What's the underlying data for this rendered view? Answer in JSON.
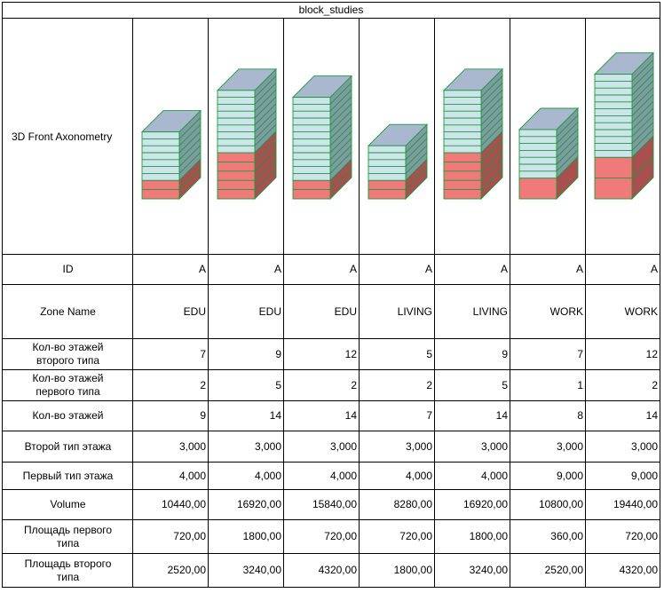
{
  "schedule": {
    "title": "block_studies",
    "rows": [
      {
        "key": "axon",
        "label": "3D Front Axonometry",
        "align": "left"
      },
      {
        "key": "id",
        "label": "ID"
      },
      {
        "key": "zone",
        "label": "Zone Name"
      },
      {
        "key": "n2",
        "label": "Кол-во этажей второго типа"
      },
      {
        "key": "n1",
        "label": "Кол-во этажей первого типа"
      },
      {
        "key": "n",
        "label": "Кол-во этажей"
      },
      {
        "key": "h2",
        "label": "Второй тип этажа"
      },
      {
        "key": "h1",
        "label": "Первый тип этажа"
      },
      {
        "key": "vol",
        "label": "Volume"
      },
      {
        "key": "a1",
        "label": "Площадь первого типа"
      },
      {
        "key": "a2",
        "label": "Площадь второго типа"
      }
    ],
    "blocks": [
      {
        "id": "A",
        "zone": "EDU",
        "n2": "7",
        "n1": "2",
        "n": "9",
        "h2": "3,000",
        "h1": "4,000",
        "vol": "10440,00",
        "a1": "720,00",
        "a2": "2520,00"
      },
      {
        "id": "A",
        "zone": "EDU",
        "n2": "9",
        "n1": "5",
        "n": "14",
        "h2": "3,000",
        "h1": "4,000",
        "vol": "16920,00",
        "a1": "1800,00",
        "a2": "3240,00"
      },
      {
        "id": "A",
        "zone": "EDU",
        "n2": "12",
        "n1": "2",
        "n": "14",
        "h2": "3,000",
        "h1": "4,000",
        "vol": "15840,00",
        "a1": "720,00",
        "a2": "4320,00"
      },
      {
        "id": "A",
        "zone": "LIVING",
        "n2": "5",
        "n1": "2",
        "n": "7",
        "h2": "3,000",
        "h1": "4,000",
        "vol": "8280,00",
        "a1": "720,00",
        "a2": "1800,00"
      },
      {
        "id": "A",
        "zone": "LIVING",
        "n2": "9",
        "n1": "5",
        "n": "14",
        "h2": "3,000",
        "h1": "4,000",
        "vol": "16920,00",
        "a1": "1800,00",
        "a2": "3240,00"
      },
      {
        "id": "A",
        "zone": "WORK",
        "n2": "7",
        "n1": "1",
        "n": "8",
        "h2": "3,000",
        "h1": "9,000",
        "vol": "10800,00",
        "a1": "360,00",
        "a2": "2520,00"
      },
      {
        "id": "A",
        "zone": "WORK",
        "n2": "12",
        "n1": "2",
        "n": "14",
        "h2": "3,000",
        "h1": "9,000",
        "vol": "19440,00",
        "a1": "720,00",
        "a2": "4320,00"
      }
    ]
  },
  "colors": {
    "upper_front": "#cce4ea",
    "upper_side": "#7f9aa3",
    "upper_top": "#a9b8cf",
    "lower_front": "#f07a7a",
    "lower_side": "#a84f4f",
    "edge": "#1a9a3a"
  }
}
